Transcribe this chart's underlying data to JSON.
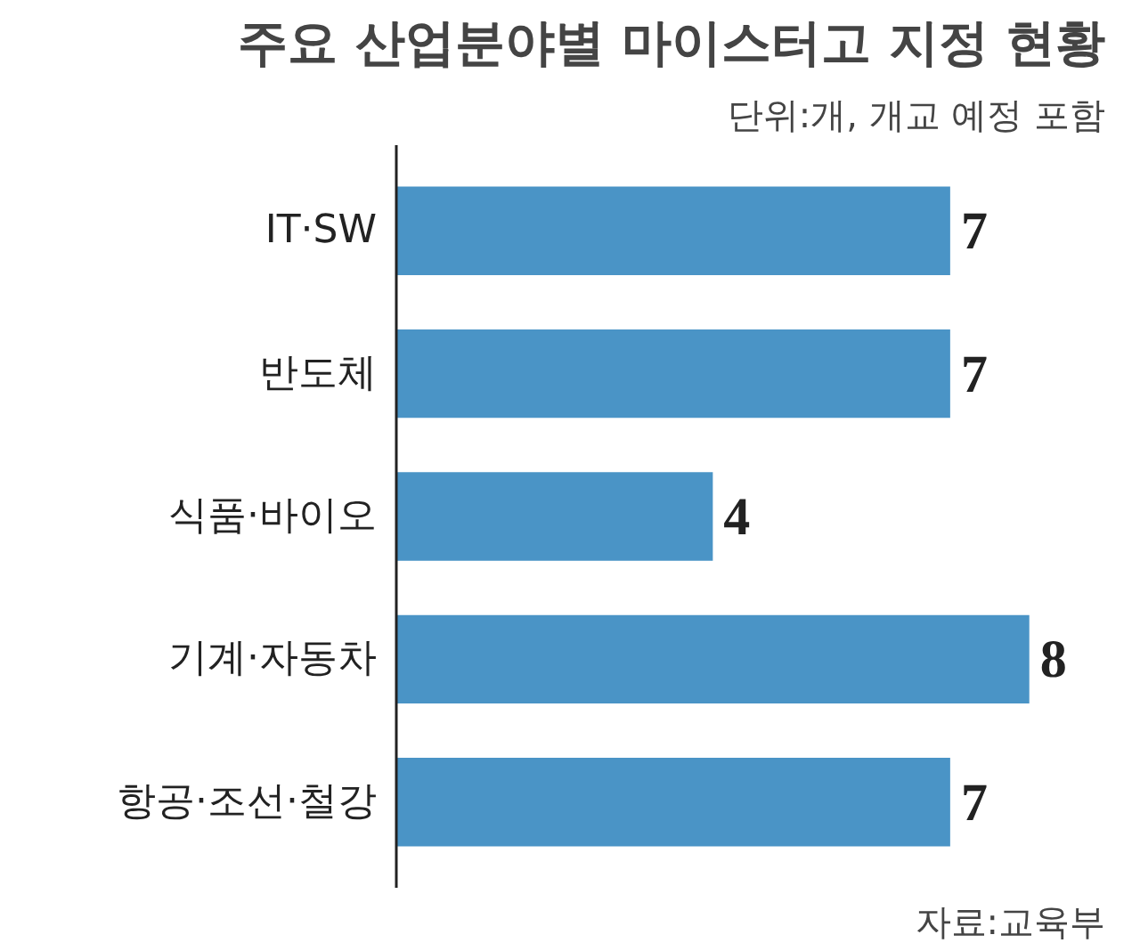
{
  "chart_data": {
    "type": "bar",
    "orientation": "horizontal",
    "title": "주요 산업분야별 마이스터고 지정 현황",
    "subtitle": "단위:개, 개교 예정 포함",
    "categories": [
      "IT·SW",
      "반도체",
      "식품·바이오",
      "기계·자동차",
      "항공·조선·철강"
    ],
    "values": [
      7,
      7,
      4,
      8,
      7
    ],
    "color": "#4a94c6",
    "data_labels": true,
    "grid": false,
    "annotations": [
      "자료:교육부"
    ]
  }
}
